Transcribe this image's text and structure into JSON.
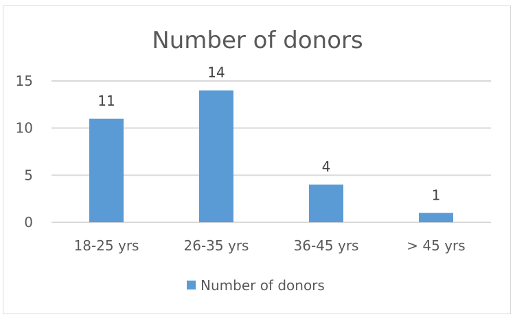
{
  "chart_data": {
    "type": "bar",
    "title": "Number of donors",
    "categories": [
      "18-25 yrs",
      "26-35 yrs",
      "36-45 yrs",
      "> 45 yrs"
    ],
    "series": [
      {
        "name": "Number of donors",
        "values": [
          11,
          14,
          4,
          1
        ],
        "color": "#5b9bd5"
      }
    ],
    "yticks": [
      0,
      5,
      10,
      15
    ],
    "ylim": [
      0,
      15
    ],
    "xlabel": "",
    "ylabel": "",
    "grid": true,
    "legend": "bottom",
    "data_labels": true
  }
}
